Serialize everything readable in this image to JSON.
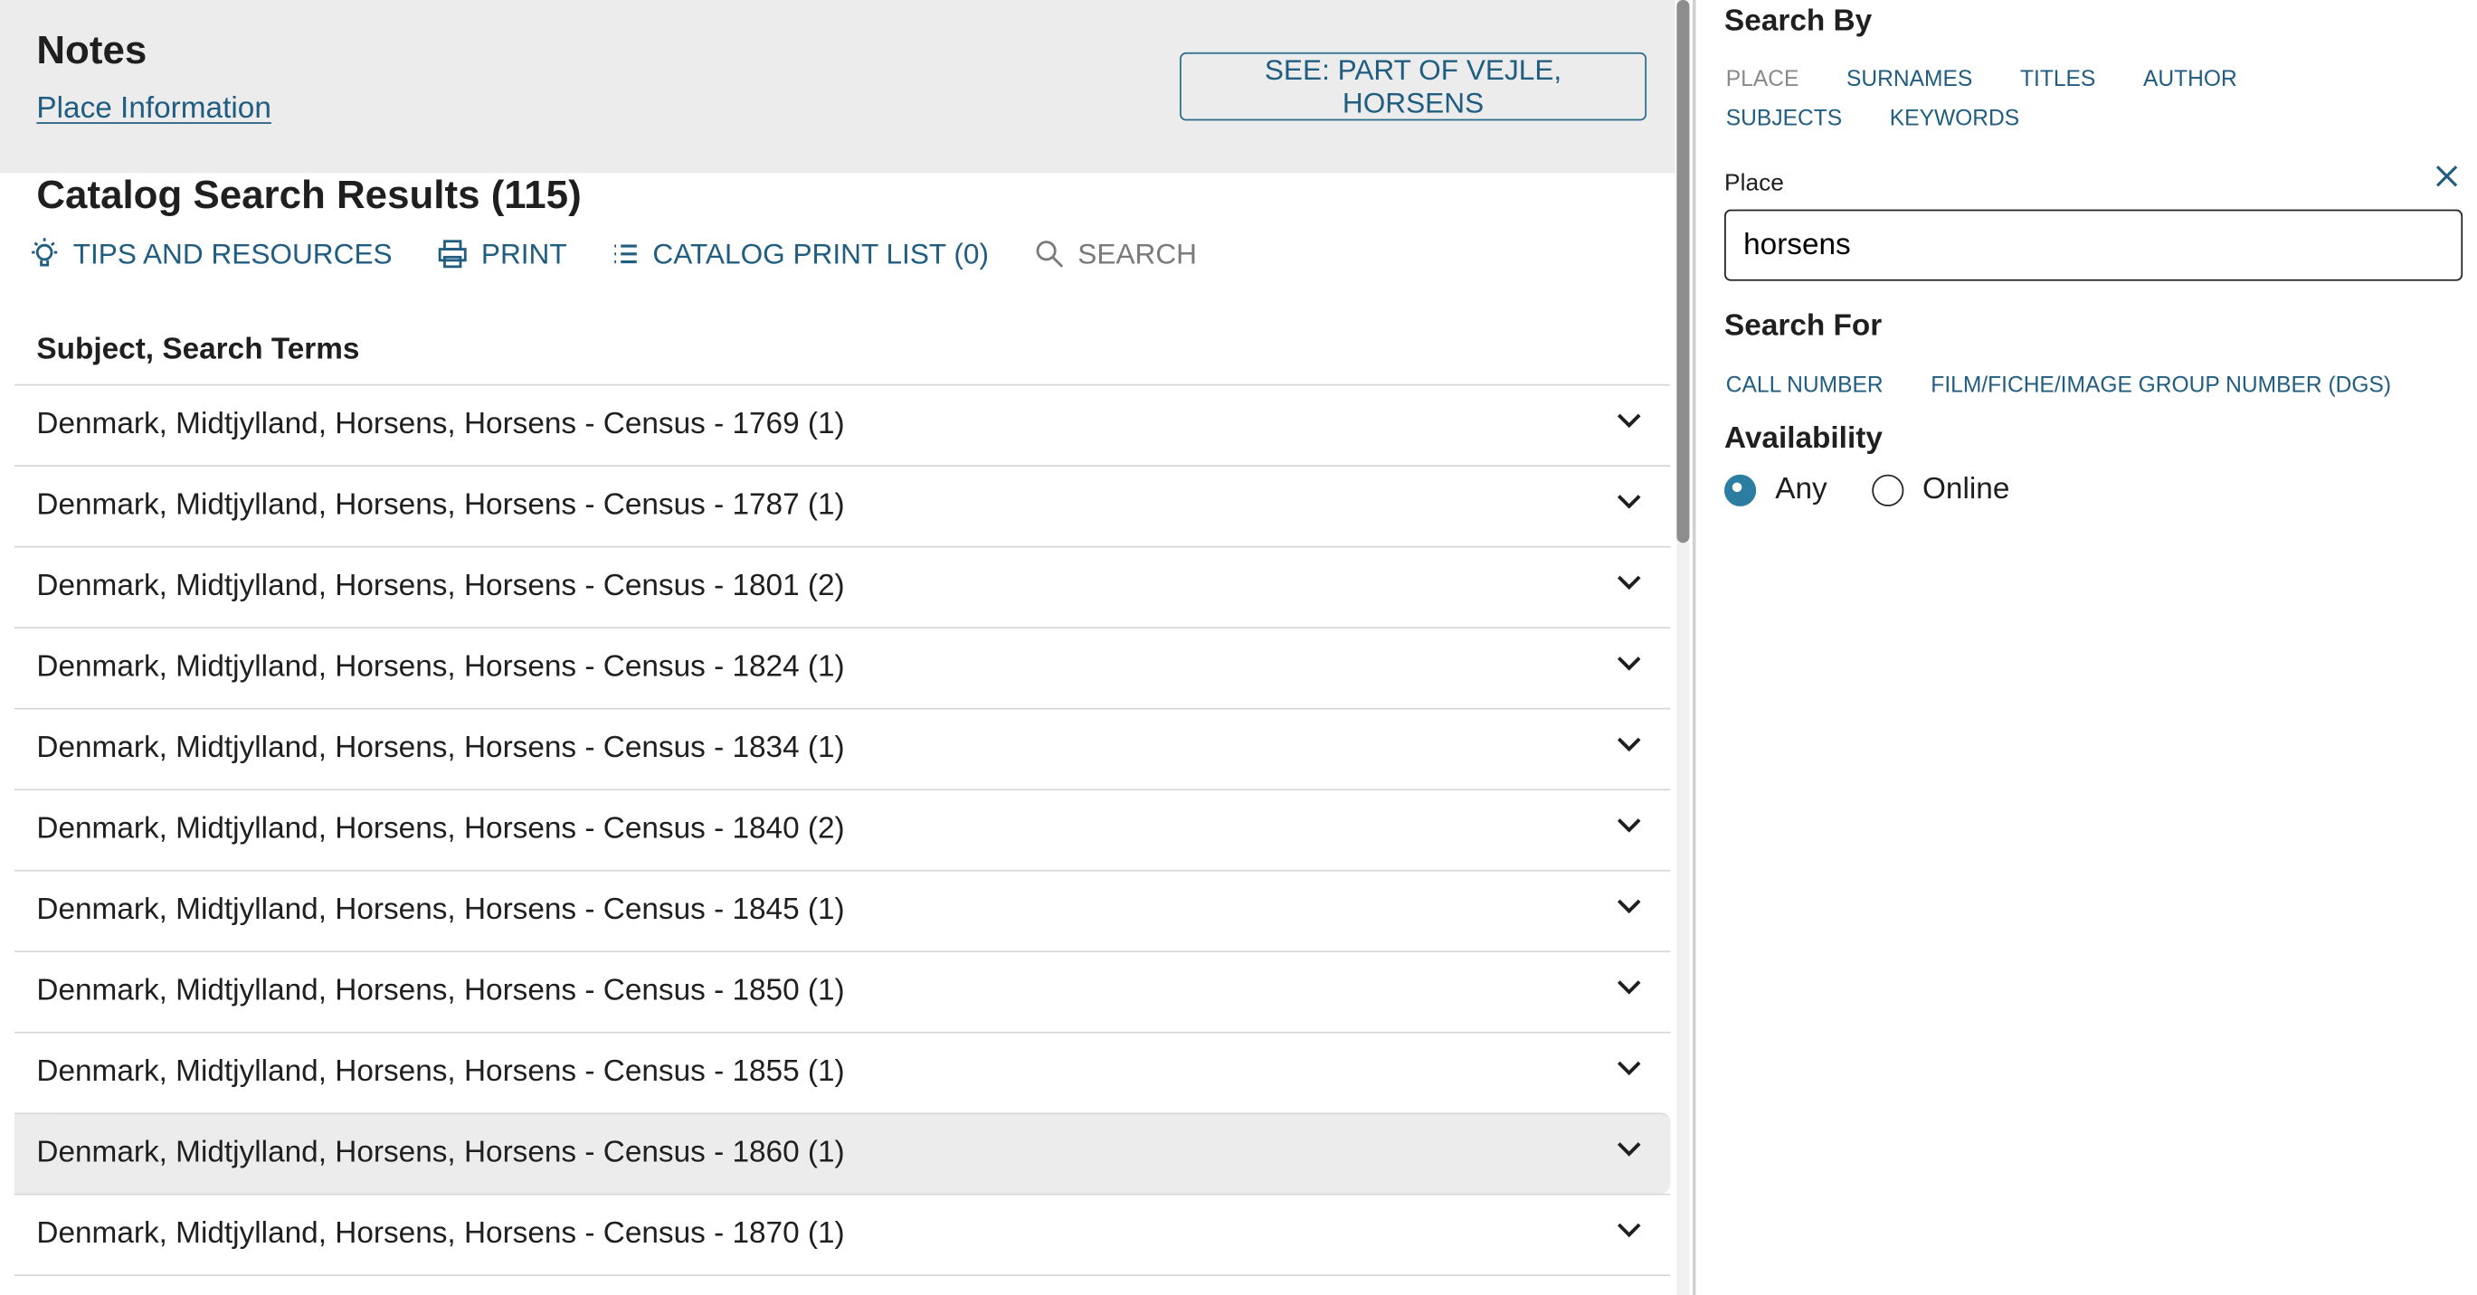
{
  "notes": {
    "title": "Notes",
    "place_info_link": "Place Information",
    "see_button": "SEE: PART OF VEJLE, HORSENS"
  },
  "results": {
    "title": "Catalog Search Results (115)",
    "subject_header": "Subject, Search Terms",
    "toolbar": [
      {
        "label": "TIPS AND RESOURCES",
        "icon": "lightbulb-icon"
      },
      {
        "label": "PRINT",
        "icon": "printer-icon"
      },
      {
        "label": "CATALOG PRINT LIST (0)",
        "icon": "list-icon"
      },
      {
        "label": "SEARCH",
        "icon": "search-icon"
      }
    ],
    "rows": [
      "Denmark, Midtjylland, Horsens, Horsens - Census - 1769 (1)",
      "Denmark, Midtjylland, Horsens, Horsens - Census - 1787 (1)",
      "Denmark, Midtjylland, Horsens, Horsens - Census - 1801 (2)",
      "Denmark, Midtjylland, Horsens, Horsens - Census - 1824 (1)",
      "Denmark, Midtjylland, Horsens, Horsens - Census - 1834 (1)",
      "Denmark, Midtjylland, Horsens, Horsens - Census - 1840 (2)",
      "Denmark, Midtjylland, Horsens, Horsens - Census - 1845 (1)",
      "Denmark, Midtjylland, Horsens, Horsens - Census - 1850 (1)",
      "Denmark, Midtjylland, Horsens, Horsens - Census - 1855 (1)",
      "Denmark, Midtjylland, Horsens, Horsens - Census - 1860 (1)",
      "Denmark, Midtjylland, Horsens, Horsens - Census - 1870 (1)"
    ],
    "highlighted_row": 9
  },
  "search": {
    "search_by_title": "Search By",
    "tabs": [
      "PLACE",
      "SURNAMES",
      "TITLES",
      "AUTHOR",
      "SUBJECTS",
      "KEYWORDS"
    ],
    "active_tab": "PLACE",
    "place_label": "Place",
    "place_value": "horsens",
    "search_for_title": "Search For",
    "search_for": [
      "CALL NUMBER",
      "FILM/FICHE/IMAGE GROUP NUMBER (DGS)"
    ],
    "availability_title": "Availability",
    "availability_options": [
      "Any",
      "Online"
    ],
    "availability_selected": "Any"
  },
  "colors": {
    "accent": "#215d80",
    "band": "#ebeceb",
    "radio": "#2b7ea1"
  }
}
